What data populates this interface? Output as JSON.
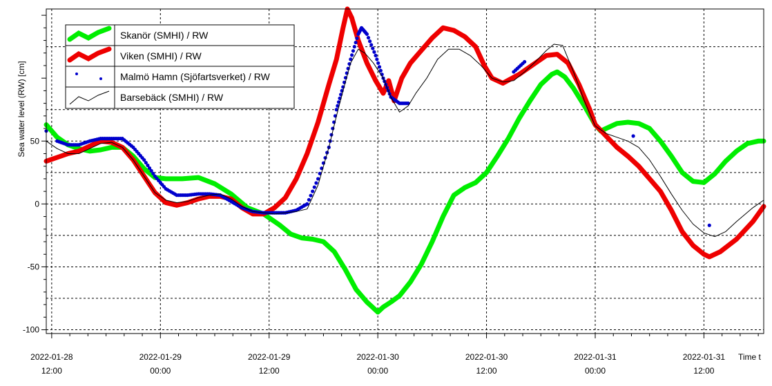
{
  "chart_data": {
    "type": "line",
    "ylabel": "Sea water level (RW) [cm]",
    "xlabel": "Time t",
    "ylim": [
      -103,
      155
    ],
    "xlim": [
      -0.05,
      6.55
    ],
    "grid": true,
    "legend_position": "top-left",
    "y_ticks": [
      {
        "value": 50,
        "label": "50"
      },
      {
        "value": 0,
        "label": "0"
      },
      {
        "value": -50,
        "label": "-50"
      },
      {
        "value": -100,
        "label": "-100"
      }
    ],
    "x_ticks": [
      {
        "value": 0,
        "date": "2022-01-28",
        "time": "12:00"
      },
      {
        "value": 1,
        "date": "2022-01-29",
        "time": "00:00"
      },
      {
        "value": 2,
        "date": "2022-01-29",
        "time": "12:00"
      },
      {
        "value": 3,
        "date": "2022-01-30",
        "time": "00:00"
      },
      {
        "value": 4,
        "date": "2022-01-30",
        "time": "12:00"
      },
      {
        "value": 5,
        "date": "2022-01-31",
        "time": "00:00"
      },
      {
        "value": 6,
        "date": "2022-01-31",
        "time": "12:00"
      }
    ],
    "series": [
      {
        "name": "Skanör (SMHI) / RW",
        "color": "#00ee00",
        "style": "thick-line",
        "points": [
          [
            -0.07,
            63
          ],
          [
            0.05,
            53
          ],
          [
            0.15,
            47
          ],
          [
            0.25,
            44
          ],
          [
            0.35,
            42
          ],
          [
            0.45,
            43
          ],
          [
            0.55,
            45
          ],
          [
            0.65,
            45
          ],
          [
            0.75,
            38
          ],
          [
            0.85,
            28
          ],
          [
            0.95,
            21
          ],
          [
            1.05,
            20
          ],
          [
            1.2,
            20
          ],
          [
            1.35,
            21
          ],
          [
            1.5,
            16
          ],
          [
            1.65,
            8
          ],
          [
            1.8,
            -3
          ],
          [
            1.95,
            -8
          ],
          [
            2.1,
            -17
          ],
          [
            2.2,
            -24
          ],
          [
            2.3,
            -27
          ],
          [
            2.4,
            -28
          ],
          [
            2.5,
            -30
          ],
          [
            2.6,
            -38
          ],
          [
            2.7,
            -52
          ],
          [
            2.8,
            -68
          ],
          [
            2.9,
            -78
          ],
          [
            2.95,
            -82
          ],
          [
            3.0,
            -86
          ],
          [
            3.05,
            -82
          ],
          [
            3.12,
            -78
          ],
          [
            3.2,
            -73
          ],
          [
            3.3,
            -62
          ],
          [
            3.4,
            -48
          ],
          [
            3.5,
            -30
          ],
          [
            3.6,
            -10
          ],
          [
            3.7,
            7
          ],
          [
            3.8,
            13
          ],
          [
            3.9,
            17
          ],
          [
            4.0,
            25
          ],
          [
            4.1,
            38
          ],
          [
            4.2,
            52
          ],
          [
            4.3,
            68
          ],
          [
            4.4,
            82
          ],
          [
            4.5,
            95
          ],
          [
            4.6,
            103
          ],
          [
            4.65,
            105
          ],
          [
            4.72,
            101
          ],
          [
            4.8,
            92
          ],
          [
            4.9,
            78
          ],
          [
            5.0,
            63
          ],
          [
            5.05,
            58
          ],
          [
            5.1,
            60
          ],
          [
            5.2,
            64
          ],
          [
            5.3,
            65
          ],
          [
            5.4,
            64
          ],
          [
            5.5,
            60
          ],
          [
            5.6,
            50
          ],
          [
            5.7,
            38
          ],
          [
            5.8,
            25
          ],
          [
            5.9,
            18
          ],
          [
            6.0,
            17
          ],
          [
            6.1,
            24
          ],
          [
            6.2,
            34
          ],
          [
            6.3,
            42
          ],
          [
            6.4,
            48
          ],
          [
            6.5,
            50
          ],
          [
            6.56,
            50
          ]
        ]
      },
      {
        "name": "Viken (SMHI) / RW",
        "color": "#ee0000",
        "style": "thick-line",
        "points": [
          [
            -0.07,
            34
          ],
          [
            0.05,
            37
          ],
          [
            0.15,
            40
          ],
          [
            0.25,
            42
          ],
          [
            0.35,
            46
          ],
          [
            0.45,
            50
          ],
          [
            0.55,
            49
          ],
          [
            0.65,
            45
          ],
          [
            0.75,
            35
          ],
          [
            0.85,
            22
          ],
          [
            0.95,
            9
          ],
          [
            1.05,
            1
          ],
          [
            1.15,
            -1
          ],
          [
            1.25,
            1
          ],
          [
            1.35,
            4
          ],
          [
            1.45,
            6
          ],
          [
            1.55,
            6
          ],
          [
            1.65,
            4
          ],
          [
            1.75,
            -3
          ],
          [
            1.85,
            -8
          ],
          [
            1.95,
            -8
          ],
          [
            2.05,
            -3
          ],
          [
            2.15,
            5
          ],
          [
            2.25,
            20
          ],
          [
            2.35,
            40
          ],
          [
            2.45,
            65
          ],
          [
            2.55,
            95
          ],
          [
            2.62,
            115
          ],
          [
            2.68,
            140
          ],
          [
            2.72,
            155
          ],
          [
            2.76,
            148
          ],
          [
            2.82,
            130
          ],
          [
            2.9,
            112
          ],
          [
            2.98,
            98
          ],
          [
            3.05,
            88
          ],
          [
            3.1,
            98
          ],
          [
            3.15,
            82
          ],
          [
            3.22,
            100
          ],
          [
            3.3,
            112
          ],
          [
            3.4,
            122
          ],
          [
            3.5,
            132
          ],
          [
            3.6,
            140
          ],
          [
            3.7,
            138
          ],
          [
            3.8,
            133
          ],
          [
            3.9,
            125
          ],
          [
            3.98,
            110
          ],
          [
            4.05,
            100
          ],
          [
            4.15,
            96
          ],
          [
            4.3,
            103
          ],
          [
            4.45,
            112
          ],
          [
            4.55,
            118
          ],
          [
            4.65,
            119
          ],
          [
            4.75,
            112
          ],
          [
            4.85,
            95
          ],
          [
            4.95,
            75
          ],
          [
            5.0,
            63
          ],
          [
            5.1,
            54
          ],
          [
            5.2,
            45
          ],
          [
            5.3,
            38
          ],
          [
            5.4,
            30
          ],
          [
            5.5,
            20
          ],
          [
            5.6,
            10
          ],
          [
            5.7,
            -5
          ],
          [
            5.8,
            -22
          ],
          [
            5.9,
            -33
          ],
          [
            6.0,
            -40
          ],
          [
            6.05,
            -42
          ],
          [
            6.15,
            -38
          ],
          [
            6.3,
            -28
          ],
          [
            6.45,
            -14
          ],
          [
            6.56,
            -2
          ]
        ]
      },
      {
        "name": "Malmö Hamn (Sjöfartsverket) / RW",
        "color": "#0000cc",
        "style": "dots",
        "points": [
          [
            -0.07,
            58
          ],
          [
            0.05,
            50
          ],
          [
            0.15,
            47
          ],
          [
            0.25,
            47
          ],
          [
            0.35,
            50
          ],
          [
            0.45,
            52
          ],
          [
            0.55,
            52
          ],
          [
            0.65,
            52
          ],
          [
            0.75,
            45
          ],
          [
            0.85,
            35
          ],
          [
            0.95,
            22
          ],
          [
            1.05,
            12
          ],
          [
            1.15,
            7
          ],
          [
            1.25,
            7
          ],
          [
            1.35,
            8
          ],
          [
            1.45,
            8
          ],
          [
            1.55,
            7
          ],
          [
            1.65,
            2
          ],
          [
            1.75,
            -3
          ],
          [
            1.85,
            -6
          ],
          [
            1.95,
            -7
          ],
          [
            2.05,
            -7
          ],
          [
            2.15,
            -7
          ],
          [
            2.25,
            -5
          ],
          [
            2.35,
            0
          ],
          [
            2.45,
            20
          ],
          [
            2.55,
            45
          ],
          [
            2.62,
            75
          ],
          [
            2.68,
            93
          ],
          [
            2.75,
            115
          ],
          [
            2.82,
            135
          ],
          [
            2.85,
            140
          ],
          [
            2.9,
            135
          ],
          [
            2.98,
            118
          ],
          [
            3.05,
            100
          ],
          [
            3.12,
            85
          ],
          [
            3.2,
            80
          ],
          [
            3.28,
            80
          ],
          [
            4.25,
            105
          ],
          [
            4.35,
            113
          ],
          [
            5.35,
            54
          ],
          [
            6.05,
            -17
          ]
        ]
      },
      {
        "name": "Barsebäck (SMHI) / RW",
        "color": "#000000",
        "style": "thin-line",
        "points": [
          [
            -0.07,
            50
          ],
          [
            0.05,
            44
          ],
          [
            0.15,
            40
          ],
          [
            0.25,
            40
          ],
          [
            0.35,
            44
          ],
          [
            0.45,
            48
          ],
          [
            0.55,
            49
          ],
          [
            0.65,
            45
          ],
          [
            0.75,
            35
          ],
          [
            0.85,
            22
          ],
          [
            0.95,
            9
          ],
          [
            1.05,
            3
          ],
          [
            1.15,
            1
          ],
          [
            1.25,
            2
          ],
          [
            1.35,
            5
          ],
          [
            1.45,
            7
          ],
          [
            1.55,
            8
          ],
          [
            1.65,
            4
          ],
          [
            1.75,
            -2
          ],
          [
            1.85,
            -6
          ],
          [
            1.95,
            -7
          ],
          [
            2.05,
            -8
          ],
          [
            2.15,
            -7
          ],
          [
            2.25,
            -6
          ],
          [
            2.35,
            -4
          ],
          [
            2.45,
            15
          ],
          [
            2.55,
            45
          ],
          [
            2.62,
            70
          ],
          [
            2.68,
            90
          ],
          [
            2.75,
            112
          ],
          [
            2.82,
            123
          ],
          [
            2.88,
            120
          ],
          [
            2.96,
            112
          ],
          [
            3.05,
            100
          ],
          [
            3.12,
            85
          ],
          [
            3.2,
            73
          ],
          [
            3.28,
            78
          ],
          [
            3.35,
            88
          ],
          [
            3.45,
            100
          ],
          [
            3.55,
            115
          ],
          [
            3.65,
            123
          ],
          [
            3.75,
            123
          ],
          [
            3.85,
            118
          ],
          [
            3.95,
            110
          ],
          [
            4.05,
            100
          ],
          [
            4.15,
            97
          ],
          [
            4.25,
            98
          ],
          [
            4.35,
            105
          ],
          [
            4.45,
            113
          ],
          [
            4.55,
            122
          ],
          [
            4.62,
            127
          ],
          [
            4.7,
            126
          ],
          [
            4.8,
            105
          ],
          [
            4.9,
            82
          ],
          [
            5.0,
            62
          ],
          [
            5.1,
            56
          ],
          [
            5.2,
            53
          ],
          [
            5.3,
            50
          ],
          [
            5.4,
            45
          ],
          [
            5.5,
            35
          ],
          [
            5.6,
            22
          ],
          [
            5.7,
            8
          ],
          [
            5.8,
            -5
          ],
          [
            5.9,
            -16
          ],
          [
            6.0,
            -23
          ],
          [
            6.1,
            -26
          ],
          [
            6.2,
            -22
          ],
          [
            6.3,
            -14
          ],
          [
            6.45,
            -3
          ],
          [
            6.56,
            3
          ]
        ]
      }
    ]
  }
}
